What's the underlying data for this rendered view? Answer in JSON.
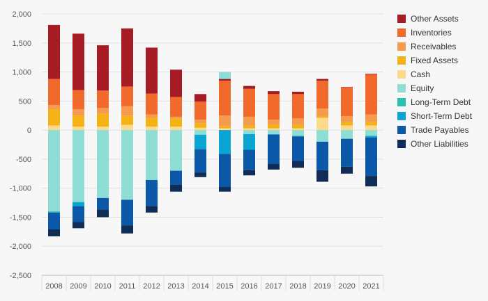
{
  "chart_data": {
    "type": "bar",
    "stacked": true,
    "categories": [
      "2008",
      "2009",
      "2010",
      "2011",
      "2012",
      "2013",
      "2014",
      "2015",
      "2016",
      "2017",
      "2018",
      "2019",
      "2020",
      "2021"
    ],
    "ylim": [
      -2500,
      2000
    ],
    "yticks": [
      {
        "value": 2000,
        "label": "2,000"
      },
      {
        "value": 1500,
        "label": "1,500"
      },
      {
        "value": 1000,
        "label": "1,000"
      },
      {
        "value": 500,
        "label": "500"
      },
      {
        "value": 0,
        "label": "0"
      },
      {
        "value": -500,
        "label": "-500"
      },
      {
        "value": -1000,
        "label": "-1,000"
      },
      {
        "value": -1500,
        "label": "-1,500"
      },
      {
        "value": -2000,
        "label": "-2,000"
      },
      {
        "value": -2500,
        "label": "-2,500"
      }
    ],
    "grid": "horizontal",
    "legend_position": "right",
    "series": [
      {
        "name": "Other Assets",
        "side": "asset",
        "color": "#a51c24",
        "values": [
          930,
          970,
          780,
          1000,
          790,
          470,
          130,
          30,
          50,
          50,
          40,
          30,
          10,
          10
        ]
      },
      {
        "name": "Inventories",
        "side": "asset",
        "color": "#f26a2b",
        "values": [
          450,
          330,
          300,
          340,
          360,
          340,
          310,
          600,
          480,
          440,
          420,
          480,
          490,
          690
        ]
      },
      {
        "name": "Receivables",
        "side": "asset",
        "color": "#f69b4d",
        "values": [
          70,
          110,
          100,
          160,
          60,
          30,
          60,
          180,
          150,
          90,
          110,
          140,
          100,
          130
        ]
      },
      {
        "name": "Fixed Assets",
        "side": "asset",
        "color": "#f5b216",
        "values": [
          280,
          190,
          220,
          160,
          150,
          140,
          80,
          40,
          50,
          60,
          60,
          20,
          60,
          60
        ]
      },
      {
        "name": "Cash",
        "side": "asset",
        "color": "#fdd98b",
        "values": [
          80,
          60,
          60,
          90,
          60,
          60,
          40,
          30,
          30,
          30,
          30,
          210,
          80,
          80
        ]
      },
      {
        "name": "Equity",
        "side": "liability",
        "color": "#8fded6",
        "values": [
          1400,
          1240,
          1170,
          1200,
          860,
          700,
          80,
          0,
          70,
          70,
          100,
          200,
          150,
          100
        ]
      },
      {
        "name": "Long-Term Debt",
        "side": "liability",
        "color": "#2abfae",
        "values": [
          20,
          0,
          0,
          0,
          0,
          0,
          0,
          0,
          0,
          0,
          0,
          0,
          0,
          0
        ]
      },
      {
        "name": "Short-Term Debt",
        "side": "liability",
        "color": "#0ba5d3",
        "values": [
          0,
          70,
          0,
          0,
          0,
          0,
          250,
          410,
          270,
          10,
          10,
          0,
          0,
          30
        ]
      },
      {
        "name": "Trade Payables",
        "side": "liability",
        "color": "#0b57a8",
        "values": [
          290,
          270,
          200,
          440,
          450,
          240,
          400,
          570,
          350,
          500,
          420,
          490,
          480,
          660
        ]
      },
      {
        "name": "Other Liabilities",
        "side": "liability",
        "color": "#0f2d56",
        "values": [
          120,
          110,
          130,
          140,
          110,
          120,
          80,
          80,
          90,
          100,
          120,
          200,
          120,
          180
        ]
      }
    ],
    "positive_outliers": [
      {
        "series": "Equity",
        "category": "2015",
        "value": 120
      }
    ]
  }
}
